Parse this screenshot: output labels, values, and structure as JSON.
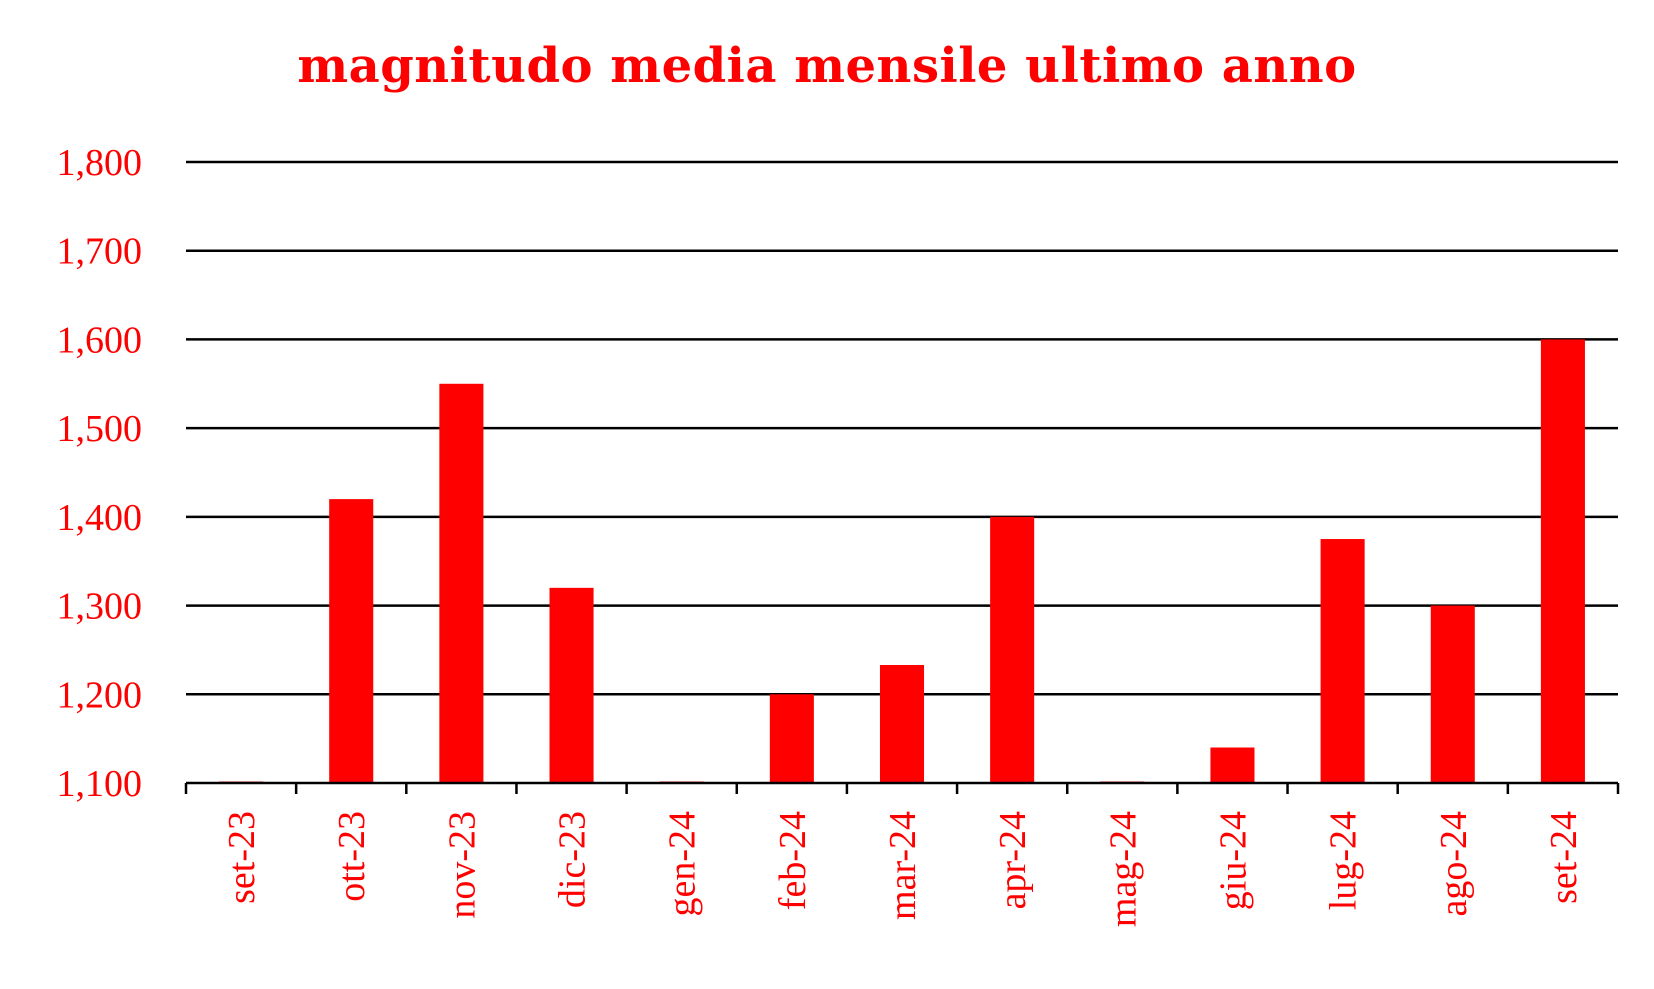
{
  "chart_data": {
    "type": "bar",
    "title": "magnitudo media mensile ultimo anno",
    "categories": [
      "set-23",
      "ott-23",
      "nov-23",
      "dic-23",
      "gen-24",
      "feb-24",
      "mar-24",
      "apr-24",
      "mag-24",
      "giu-24",
      "lug-24",
      "ago-24",
      "set-24"
    ],
    "values": [
      1.1,
      1.42,
      1.55,
      1.32,
      1.1,
      1.2,
      1.233,
      1.4,
      1.1,
      1.14,
      1.375,
      1.3,
      1.6
    ],
    "ylim": [
      1.1,
      1.8
    ],
    "yticks": [
      "1,100",
      "1,200",
      "1,300",
      "1,400",
      "1,500",
      "1,600",
      "1,700",
      "1,800"
    ],
    "xlabel": "",
    "ylabel": "",
    "grid": true,
    "bar_color": "#ff0000",
    "text_color": "#ff0000",
    "grid_color": "#000000"
  }
}
